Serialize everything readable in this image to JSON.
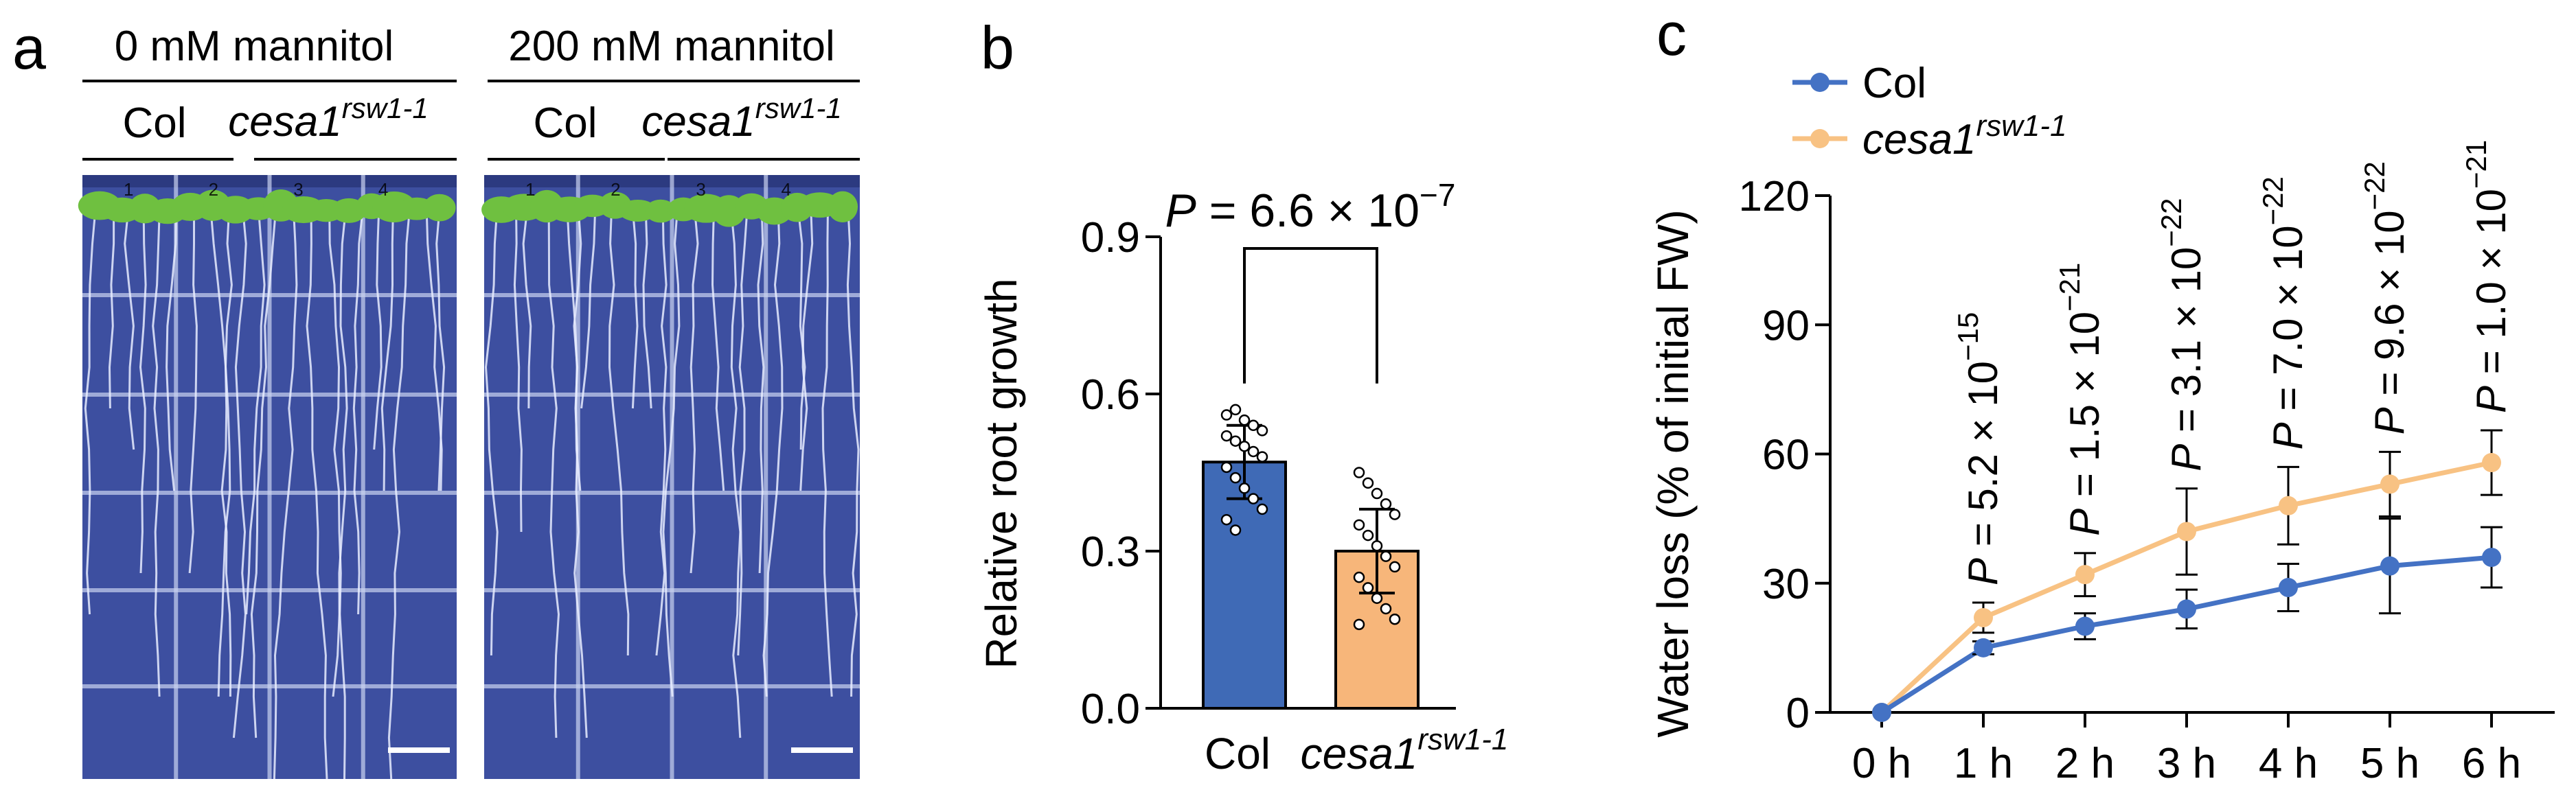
{
  "panel_a": {
    "letter": "a",
    "conditions": [
      {
        "title": "0 mM mannitol",
        "genotypes": [
          {
            "name": "Col",
            "sup": ""
          },
          {
            "name": "cesa1",
            "sup": "rsw1-1"
          }
        ]
      },
      {
        "title": "200 mM mannitol",
        "genotypes": [
          {
            "name": "Col",
            "sup": ""
          },
          {
            "name": "cesa1",
            "sup": "rsw1-1"
          }
        ]
      }
    ],
    "plate_labels": [
      "1",
      "2",
      "3",
      "4"
    ],
    "colors": {
      "plate": "#3d4fa0",
      "grid": "#c9d2f0",
      "leaf": "#6fc040",
      "root": "#e8ecff"
    }
  },
  "chart_data": [
    {
      "panel": "b",
      "type": "bar",
      "title": "",
      "categories": [
        "Col",
        "cesa1"
      ],
      "category_sup": [
        "",
        "rsw1-1"
      ],
      "values": [
        0.47,
        0.3
      ],
      "errors": [
        0.07,
        0.08
      ],
      "points": [
        [
          0.56,
          0.57,
          0.55,
          0.54,
          0.53,
          0.52,
          0.51,
          0.5,
          0.49,
          0.48,
          0.46,
          0.44,
          0.42,
          0.4,
          0.38,
          0.36,
          0.34
        ],
        [
          0.45,
          0.43,
          0.41,
          0.39,
          0.37,
          0.35,
          0.33,
          0.31,
          0.29,
          0.27,
          0.25,
          0.23,
          0.21,
          0.19,
          0.17,
          0.16
        ]
      ],
      "ylabel": "Relative root growth",
      "xlabel": "",
      "yticks": [
        "0.0",
        "0.3",
        "0.6",
        "0.9"
      ],
      "ylim": [
        0,
        0.9
      ],
      "significance": {
        "text": "P = 6.6 × 10",
        "exp": "−7"
      },
      "colors": [
        "#3f6ab6",
        "#f7b67a"
      ]
    },
    {
      "panel": "c",
      "type": "line",
      "title": "",
      "x": [
        "0 h",
        "1 h",
        "2 h",
        "3 h",
        "4 h",
        "5 h",
        "6 h"
      ],
      "series": [
        {
          "name": "Col",
          "sup": "",
          "values": [
            0,
            15,
            20,
            24,
            29,
            34,
            36
          ],
          "errors": [
            0,
            1.5,
            3,
            4.5,
            5.5,
            11,
            7
          ],
          "color": "#4472c4"
        },
        {
          "name": "cesa1",
          "sup": "rsw1-1",
          "values": [
            0,
            22,
            32,
            42,
            48,
            53,
            58
          ],
          "errors": [
            0,
            3.5,
            5,
            10,
            9,
            7.5,
            7.5
          ],
          "color": "#f8c283"
        }
      ],
      "ylabel": "Water loss (% of initial FW)",
      "xlabel": "",
      "yticks": [
        "0",
        "30",
        "60",
        "90",
        "120"
      ],
      "ylim": [
        0,
        120
      ],
      "pvalues": [
        {
          "text": "P = 5.2 × 10",
          "exp": "−15"
        },
        {
          "text": "P = 1.5 × 10",
          "exp": "−21"
        },
        {
          "text": "P = 3.1 × 10",
          "exp": "−22"
        },
        {
          "text": "P = 7.0 × 10",
          "exp": "−22"
        },
        {
          "text": "P = 9.6 × 10",
          "exp": "−22"
        },
        {
          "text": "P = 1.0 × 10",
          "exp": "−21"
        }
      ],
      "legend": "top-left"
    }
  ],
  "panel_letters": {
    "b": "b",
    "c": "c"
  }
}
